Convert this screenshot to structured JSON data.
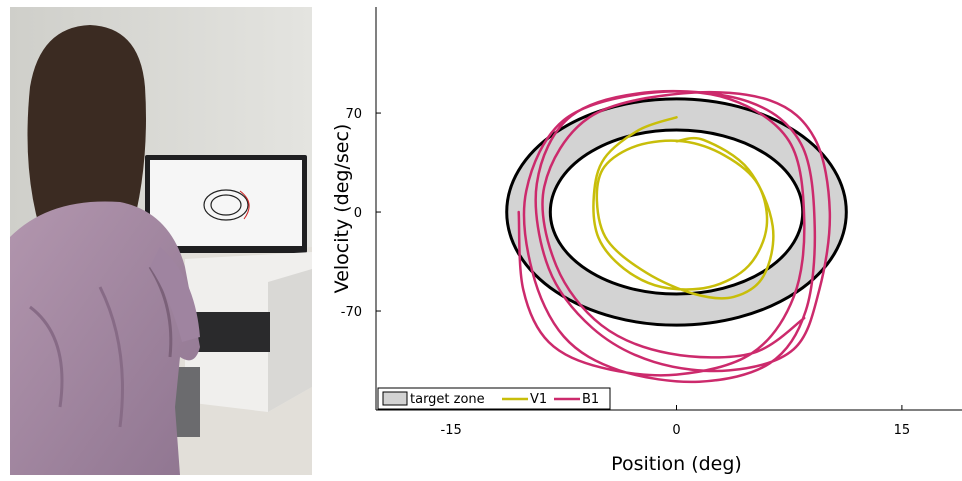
{
  "photo": {
    "description_icon": "person-at-computer-photo",
    "colors": {
      "wall": "#dcdcd8",
      "shirt": "#a98ba5",
      "hair": "#3a2a22",
      "desk": "#e6e3dd"
    }
  },
  "chart_data": {
    "type": "line",
    "title": "",
    "xlabel": "Position (deg)",
    "ylabel": "Velocity (deg/sec)",
    "xlim": [
      -20,
      19
    ],
    "ylim": [
      -140,
      145
    ],
    "xticks": [
      "-15",
      "0",
      "15"
    ],
    "yticks": [
      "70",
      "0",
      "-70"
    ],
    "grid": false,
    "legend": {
      "position": "bottom-left",
      "entries": [
        "target zone",
        "V1",
        "B1"
      ]
    },
    "target_zone": {
      "outer": {
        "x_radius": 11.3,
        "y_radius": 80
      },
      "inner": {
        "x_radius": 8.4,
        "y_radius": 58
      }
    },
    "series": [
      {
        "name": "V1",
        "color": "#c8be0a",
        "x": [
          0,
          -2.5,
          -4.8,
          -5.5,
          -5.2,
          -3.5,
          -1,
          2.2,
          4.8,
          6,
          5.4,
          3.2,
          0.4,
          -2.6,
          -4.8,
          -5.3,
          -4.6,
          -2,
          1.2,
          3.8,
          5.8,
          6.4,
          4.8,
          1.8,
          0
        ],
        "y": [
          67,
          58,
          38,
          12,
          -18,
          -40,
          -53,
          -53,
          -38,
          -10,
          20,
          40,
          50,
          47,
          32,
          8,
          -20,
          -43,
          -58,
          -60,
          -45,
          -10,
          30,
          51,
          50
        ]
      },
      {
        "name": "B1",
        "color": "#cc2a6c",
        "x": [
          -10.5,
          -10.2,
          -8.5,
          -5,
          0,
          5,
          7.8,
          8.5,
          7.5,
          3.5,
          -2,
          -7.5,
          -10,
          -9.6,
          -7.5,
          -3.8,
          1.5,
          6.2,
          8.6,
          9.2,
          8.3,
          4.8,
          -1.5,
          -7,
          -9.3,
          -8.5,
          -5.6,
          -1.5,
          3.5,
          7.8,
          9.5,
          10.2,
          9.2,
          6.2,
          0.5,
          -5.8,
          -8.8,
          -8,
          -5,
          -0.5,
          5,
          8.5
        ],
        "y": [
          0,
          -55,
          -92,
          -110,
          -115,
          -100,
          -60,
          -5,
          50,
          80,
          84,
          65,
          15,
          -42,
          -88,
          -112,
          -120,
          -107,
          -70,
          -10,
          48,
          78,
          85,
          68,
          20,
          -40,
          -82,
          -106,
          -112,
          -97,
          -55,
          0,
          52,
          79,
          84,
          67,
          18,
          -38,
          -80,
          -100,
          -100,
          -75
        ]
      }
    ]
  }
}
